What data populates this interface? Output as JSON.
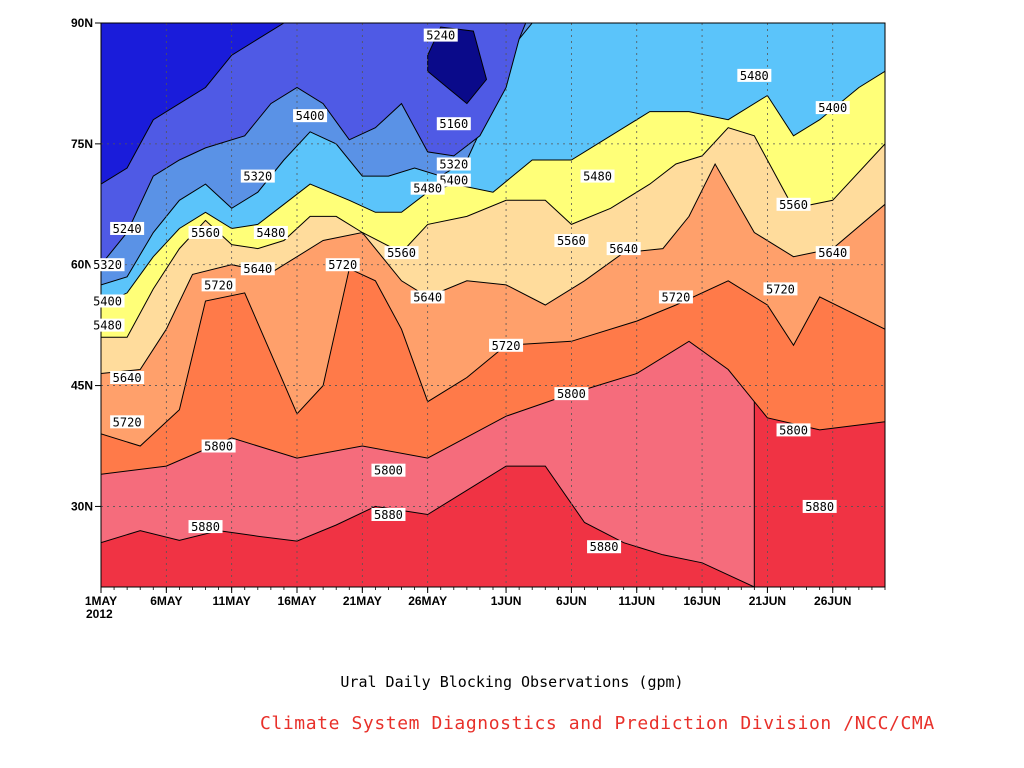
{
  "caption": "Ural Daily Blocking Observations (gpm)",
  "credit": "Climate System Diagnostics and Prediction Division /NCC/CMA",
  "colors": {
    "credit": "#e8302a",
    "fills": [
      "#f03344",
      "#f56c7c",
      "#ff7a49",
      "#ffa06b",
      "#ffdc9c",
      "#ffff78",
      "#5bc4fa",
      "#5a92e6",
      "#4f5ae5",
      "#1a1cda",
      "#0a0a8a"
    ]
  },
  "chart_data": {
    "type": "heatmap",
    "subtype": "filled contour (Hovmoller, latitude vs time)",
    "title": "Ural Daily Blocking Observations (gpm)",
    "x_axis": {
      "ticks": [
        "1MAY",
        "6MAY",
        "11MAY",
        "16MAY",
        "21MAY",
        "26MAY",
        "1JUN",
        "6JUN",
        "11JUN",
        "16JUN",
        "21JUN",
        "26JUN"
      ],
      "tick_positions_days": [
        0,
        5,
        10,
        15,
        20,
        25,
        31,
        36,
        41,
        46,
        51,
        56
      ],
      "year_label": "2012",
      "range": [
        "2012-05-01",
        "2012-06-30"
      ]
    },
    "y_axis": {
      "ticks": [
        "30N",
        "45N",
        "60N",
        "75N",
        "90N"
      ],
      "tick_values": [
        30,
        45,
        60,
        75,
        90
      ],
      "range": [
        20,
        90
      ]
    },
    "contour_levels": [
      5160,
      5240,
      5320,
      5400,
      5480,
      5560,
      5640,
      5720,
      5800,
      5880
    ],
    "contours": [
      {
        "level": 5880,
        "points": [
          [
            0,
            25.5
          ],
          [
            3,
            27
          ],
          [
            6,
            25.8
          ],
          [
            9,
            27
          ],
          [
            12,
            26.3
          ],
          [
            15,
            25.7
          ],
          [
            18,
            27.7
          ],
          [
            21,
            30
          ],
          [
            25,
            29
          ],
          [
            28,
            32
          ],
          [
            31,
            35
          ],
          [
            34,
            35
          ],
          [
            37,
            28
          ],
          [
            40,
            25.5
          ],
          [
            43,
            24
          ],
          [
            46,
            23
          ],
          [
            50,
            20
          ]
        ]
      },
      {
        "level": 5800,
        "points": [
          [
            0,
            34
          ],
          [
            5,
            35
          ],
          [
            10,
            38.5
          ],
          [
            15,
            36
          ],
          [
            20,
            37.5
          ],
          [
            25,
            36
          ],
          [
            31,
            41.2
          ],
          [
            36,
            44
          ],
          [
            41,
            46.5
          ],
          [
            45,
            50.5
          ],
          [
            48,
            47
          ],
          [
            51,
            41
          ],
          [
            55,
            39.5
          ],
          [
            60,
            40.5
          ]
        ]
      },
      {
        "level": 5720,
        "points": [
          [
            0,
            39
          ],
          [
            3,
            37.5
          ],
          [
            6,
            42
          ],
          [
            8,
            55.5
          ],
          [
            11,
            56.5
          ],
          [
            13,
            49
          ],
          [
            15,
            41.5
          ],
          [
            17,
            45
          ],
          [
            19,
            59.5
          ],
          [
            21,
            58
          ],
          [
            23,
            52
          ],
          [
            25,
            43
          ],
          [
            28,
            46
          ],
          [
            31,
            50
          ],
          [
            36,
            50.5
          ],
          [
            41,
            53
          ],
          [
            44,
            55
          ],
          [
            48,
            58
          ],
          [
            51,
            55
          ],
          [
            53,
            50
          ],
          [
            55,
            56
          ],
          [
            60,
            52
          ]
        ]
      },
      {
        "level": 5640,
        "points": [
          [
            0,
            46.5
          ],
          [
            3,
            47
          ],
          [
            5,
            52
          ],
          [
            7,
            58.8
          ],
          [
            10,
            60
          ],
          [
            13,
            59
          ],
          [
            15,
            61
          ],
          [
            17,
            63
          ],
          [
            20,
            64
          ],
          [
            23,
            58
          ],
          [
            25,
            56
          ],
          [
            28,
            58
          ],
          [
            31,
            57.5
          ],
          [
            34,
            55
          ],
          [
            37,
            58
          ],
          [
            40,
            61.5
          ],
          [
            43,
            62
          ],
          [
            45,
            66
          ],
          [
            47,
            72.5
          ],
          [
            50,
            64
          ],
          [
            53,
            61
          ],
          [
            56,
            62
          ],
          [
            60,
            67.5
          ]
        ]
      },
      {
        "level": 5560,
        "points": [
          [
            0,
            51
          ],
          [
            2,
            51
          ],
          [
            4,
            57
          ],
          [
            6,
            62
          ],
          [
            8,
            65.5
          ],
          [
            10,
            62.5
          ],
          [
            12,
            62
          ],
          [
            14,
            63
          ],
          [
            16,
            66
          ],
          [
            18,
            66
          ],
          [
            20,
            64
          ],
          [
            23,
            61.5
          ],
          [
            25,
            65
          ],
          [
            28,
            66
          ],
          [
            31,
            68
          ],
          [
            34,
            68
          ],
          [
            36,
            65
          ],
          [
            39,
            67
          ],
          [
            42,
            70
          ],
          [
            44,
            72.5
          ],
          [
            46,
            73.5
          ],
          [
            48,
            77
          ],
          [
            50,
            76
          ],
          [
            53,
            67
          ],
          [
            56,
            68
          ],
          [
            60,
            75
          ]
        ]
      },
      {
        "level": 5480,
        "points": [
          [
            0,
            55
          ],
          [
            2,
            56.5
          ],
          [
            4,
            61
          ],
          [
            6,
            64.5
          ],
          [
            8,
            66.5
          ],
          [
            10,
            64.5
          ],
          [
            12,
            65
          ],
          [
            14,
            67.5
          ],
          [
            16,
            70
          ],
          [
            19,
            68
          ],
          [
            21,
            66.5
          ],
          [
            23,
            66.5
          ],
          [
            25,
            69
          ],
          [
            27,
            70
          ],
          [
            30,
            69
          ],
          [
            33,
            73
          ],
          [
            36,
            73
          ],
          [
            39,
            76
          ],
          [
            42,
            79
          ],
          [
            45,
            79
          ],
          [
            48,
            78
          ],
          [
            51,
            81
          ],
          [
            53,
            76
          ],
          [
            55,
            78
          ],
          [
            58,
            82
          ],
          [
            60,
            84
          ]
        ]
      },
      {
        "level": 5400,
        "points": [
          [
            0,
            57.5
          ],
          [
            2,
            58.5
          ],
          [
            4,
            64
          ],
          [
            6,
            68
          ],
          [
            8,
            70
          ],
          [
            10,
            67
          ],
          [
            12,
            69
          ],
          [
            14,
            73
          ],
          [
            16,
            76.5
          ],
          [
            18,
            75
          ],
          [
            20,
            71
          ],
          [
            22,
            71
          ],
          [
            24,
            72
          ],
          [
            26,
            71
          ],
          [
            28,
            73
          ],
          [
            30,
            80
          ],
          [
            32,
            88
          ],
          [
            33,
            90
          ]
        ]
      },
      {
        "level": 5320,
        "points": [
          [
            0,
            60
          ],
          [
            2,
            64
          ],
          [
            4,
            71
          ],
          [
            6,
            73
          ],
          [
            8,
            74.5
          ],
          [
            11,
            76
          ],
          [
            13,
            80
          ],
          [
            15,
            82
          ],
          [
            17,
            80
          ],
          [
            19,
            75.5
          ],
          [
            21,
            77
          ],
          [
            23,
            80
          ],
          [
            25,
            74
          ],
          [
            27,
            73.5
          ],
          [
            29,
            76
          ],
          [
            31,
            82
          ],
          [
            32,
            88
          ],
          [
            32.5,
            90
          ]
        ]
      },
      {
        "level": 5240,
        "points": [
          [
            0,
            70
          ],
          [
            2,
            72
          ],
          [
            4,
            78
          ],
          [
            6,
            80
          ],
          [
            8,
            82
          ],
          [
            10,
            86
          ],
          [
            12,
            88
          ],
          [
            14,
            90
          ]
        ]
      },
      {
        "level": 5160,
        "points": [
          [
            25,
            84
          ],
          [
            26.5,
            82
          ],
          [
            28,
            80
          ],
          [
            29.5,
            83
          ],
          [
            28.5,
            89
          ],
          [
            26,
            89.5
          ],
          [
            25,
            86
          ]
        ]
      }
    ],
    "labels": [
      {
        "text": "5240",
        "x": 26,
        "y": 88.5
      },
      {
        "text": "5160",
        "x": 27,
        "y": 77.5
      },
      {
        "text": "5400",
        "x": 16,
        "y": 78.5
      },
      {
        "text": "5320",
        "x": 12,
        "y": 71
      },
      {
        "text": "5320",
        "x": 27,
        "y": 72.5
      },
      {
        "text": "5400",
        "x": 27,
        "y": 70.5
      },
      {
        "text": "5480",
        "x": 25,
        "y": 69.5
      },
      {
        "text": "5480",
        "x": 38,
        "y": 71
      },
      {
        "text": "5480",
        "x": 50,
        "y": 83.5
      },
      {
        "text": "5400",
        "x": 56,
        "y": 79.5
      },
      {
        "text": "5560",
        "x": 53,
        "y": 67.5
      },
      {
        "text": "5240",
        "x": 2,
        "y": 64.5
      },
      {
        "text": "5560",
        "x": 8,
        "y": 64
      },
      {
        "text": "5480",
        "x": 13,
        "y": 64
      },
      {
        "text": "5560",
        "x": 23,
        "y": 61.5
      },
      {
        "text": "5560",
        "x": 36,
        "y": 63
      },
      {
        "text": "5640",
        "x": 40,
        "y": 62
      },
      {
        "text": "5640",
        "x": 56,
        "y": 61.5
      },
      {
        "text": "5320",
        "x": 0.5,
        "y": 60
      },
      {
        "text": "5640",
        "x": 12,
        "y": 59.5
      },
      {
        "text": "5720",
        "x": 18.5,
        "y": 60
      },
      {
        "text": "5720",
        "x": 9,
        "y": 57.5
      },
      {
        "text": "5640",
        "x": 25,
        "y": 56
      },
      {
        "text": "5720",
        "x": 44,
        "y": 56
      },
      {
        "text": "5720",
        "x": 52,
        "y": 57
      },
      {
        "text": "5400",
        "x": 0.5,
        "y": 55.5
      },
      {
        "text": "5480",
        "x": 0.5,
        "y": 52.5
      },
      {
        "text": "5720",
        "x": 31,
        "y": 50
      },
      {
        "text": "5640",
        "x": 2,
        "y": 46
      },
      {
        "text": "5800",
        "x": 36,
        "y": 44
      },
      {
        "text": "5720",
        "x": 2,
        "y": 40.5
      },
      {
        "text": "5800",
        "x": 9,
        "y": 37.5
      },
      {
        "text": "5800",
        "x": 53,
        "y": 39.5
      },
      {
        "text": "5800",
        "x": 22,
        "y": 34.5
      },
      {
        "text": "5880",
        "x": 22,
        "y": 29
      },
      {
        "text": "5880",
        "x": 55,
        "y": 30
      },
      {
        "text": "5880",
        "x": 8,
        "y": 27.5
      },
      {
        "text": "5880",
        "x": 38.5,
        "y": 25
      }
    ]
  }
}
